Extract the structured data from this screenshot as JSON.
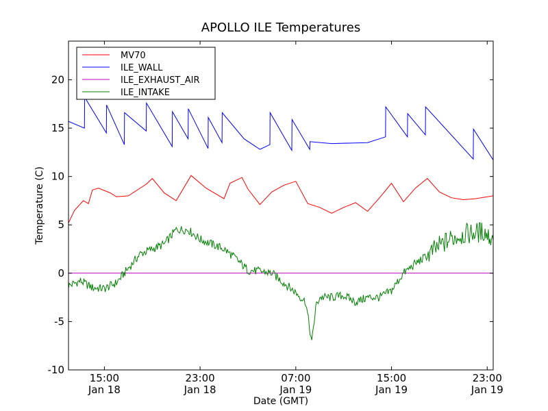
{
  "chart_data": {
    "type": "line",
    "title": "APOLLO ILE Temperatures",
    "xlabel": "Date (GMT)",
    "ylabel": "Temperature (C)",
    "xlim": [
      "2025-01-18 12:00",
      "2025-01-19 23:30"
    ],
    "ylim": [
      -10,
      24
    ],
    "grid": false,
    "legend_position": "top-left",
    "x_ticks": [
      {
        "time": "Jan 18 15:00",
        "time_label": "15:00",
        "date_label": "Jan 18"
      },
      {
        "time": "Jan 18 23:00",
        "time_label": "23:00",
        "date_label": "Jan 18"
      },
      {
        "time": "Jan 19 07:00",
        "time_label": "07:00",
        "date_label": "Jan 19"
      },
      {
        "time": "Jan 19 15:00",
        "time_label": "15:00",
        "date_label": "Jan 19"
      },
      {
        "time": "Jan 19 23:00",
        "time_label": "23:00",
        "date_label": "Jan 19"
      }
    ],
    "y_ticks": [
      "-10",
      "-5",
      "0",
      "5",
      "10",
      "15",
      "20"
    ],
    "series": [
      {
        "name": "MV70",
        "color": "#ff0000",
        "x": [
          "Jan 18 12:00",
          "Jan 18 12:30",
          "Jan 18 13:15",
          "Jan 18 13:40",
          "Jan 18 14:00",
          "Jan 18 14:30",
          "Jan 18 15:30",
          "Jan 18 16:00",
          "Jan 18 17:00",
          "Jan 18 18:30",
          "Jan 18 19:00",
          "Jan 18 20:00",
          "Jan 18 21:00",
          "Jan 18 22:15",
          "Jan 18 23:30",
          "Jan 19 01:00",
          "Jan 19 01:30",
          "Jan 19 02:30",
          "Jan 19 03:00",
          "Jan 19 04:00",
          "Jan 19 05:00",
          "Jan 19 06:00",
          "Jan 19 07:00",
          "Jan 19 08:00",
          "Jan 19 09:00",
          "Jan 19 10:00",
          "Jan 19 11:00",
          "Jan 19 12:00",
          "Jan 19 13:00",
          "Jan 19 14:00",
          "Jan 19 15:00",
          "Jan 19 16:00",
          "Jan 19 17:00",
          "Jan 19 18:00",
          "Jan 19 19:00",
          "Jan 19 20:00",
          "Jan 19 21:00",
          "Jan 19 22:00",
          "Jan 19 23:30"
        ],
        "y": [
          5.2,
          6.5,
          7.5,
          7.2,
          8.6,
          8.8,
          8.3,
          7.9,
          8.0,
          9.2,
          9.8,
          8.3,
          7.5,
          10.1,
          8.8,
          7.7,
          9.3,
          9.9,
          8.7,
          7.1,
          8.4,
          9.1,
          9.5,
          7.2,
          6.8,
          6.2,
          6.8,
          7.3,
          6.4,
          7.8,
          9.3,
          7.4,
          8.8,
          9.8,
          8.4,
          7.8,
          7.6,
          7.7,
          8.0
        ]
      },
      {
        "name": "ILE_WALL",
        "color": "#0000ff",
        "x": [
          "Jan 18 12:00",
          "Jan 18 13:20",
          "Jan 18 13:21",
          "Jan 18 15:10",
          "Jan 18 15:11",
          "Jan 18 16:40",
          "Jan 18 16:41",
          "Jan 18 18:30",
          "Jan 18 18:31",
          "Jan 18 20:40",
          "Jan 18 20:41",
          "Jan 18 22:00",
          "Jan 18 22:01",
          "Jan 18 23:40",
          "Jan 18 23:41",
          "Jan 19 00:50",
          "Jan 19 00:51",
          "Jan 19 02:40",
          "Jan 19 04:00",
          "Jan 19 04:50",
          "Jan 19 04:51",
          "Jan 19 06:40",
          "Jan 19 06:41",
          "Jan 19 08:10",
          "Jan 19 08:11",
          "Jan 19 10:00",
          "Jan 19 13:00",
          "Jan 19 14:30",
          "Jan 19 14:31",
          "Jan 19 16:20",
          "Jan 19 16:21",
          "Jan 19 17:50",
          "Jan 19 17:51",
          "Jan 19 21:50",
          "Jan 19 21:51",
          "Jan 19 23:30"
        ],
        "y": [
          15.7,
          15.0,
          18.2,
          14.5,
          17.4,
          13.3,
          16.6,
          14.7,
          17.6,
          13.1,
          16.7,
          13.9,
          17.0,
          12.9,
          16.1,
          13.5,
          16.6,
          13.9,
          12.8,
          13.3,
          16.6,
          12.7,
          15.9,
          12.8,
          13.6,
          13.4,
          13.5,
          14.1,
          17.2,
          14.1,
          16.5,
          14.3,
          17.2,
          11.8,
          14.9,
          11.7
        ]
      },
      {
        "name": "ILE_EXHAUST_AIR",
        "color": "#bf00bf",
        "x": [
          "Jan 18 12:00",
          "Jan 19 23:30"
        ],
        "y": [
          0,
          0
        ]
      },
      {
        "name": "ILE_INTAKE",
        "color": "#008000",
        "x": [
          "Jan 18 12:00",
          "Jan 18 13:00",
          "Jan 18 14:00",
          "Jan 18 15:00",
          "Jan 18 16:00",
          "Jan 18 17:00",
          "Jan 18 18:00",
          "Jan 18 19:00",
          "Jan 18 20:00",
          "Jan 18 21:00",
          "Jan 18 22:00",
          "Jan 18 23:00",
          "Jan 19 00:00",
          "Jan 19 01:00",
          "Jan 19 02:00",
          "Jan 19 03:00",
          "Jan 19 04:00",
          "Jan 19 05:00",
          "Jan 19 06:00",
          "Jan 19 07:00",
          "Jan 19 07:50",
          "Jan 19 08:20",
          "Jan 19 08:40",
          "Jan 19 09:00",
          "Jan 19 10:00",
          "Jan 19 11:00",
          "Jan 19 12:00",
          "Jan 19 13:00",
          "Jan 19 14:00",
          "Jan 19 15:00",
          "Jan 19 16:00",
          "Jan 19 17:00",
          "Jan 19 18:00",
          "Jan 19 19:00",
          "Jan 19 20:00",
          "Jan 19 21:00",
          "Jan 19 22:00",
          "Jan 19 22:45",
          "Jan 19 23:30"
        ],
        "y": [
          -1.3,
          -0.8,
          -1.5,
          -1.6,
          -1.0,
          0.5,
          2.0,
          2.5,
          3.0,
          4.5,
          4.5,
          3.5,
          3.0,
          2.5,
          1.5,
          0.3,
          0.2,
          0.0,
          -1.0,
          -2.0,
          -3.0,
          -7.2,
          -3.5,
          -2.5,
          -2.5,
          -2.3,
          -3.0,
          -2.5,
          -2.5,
          -1.8,
          0.0,
          1.0,
          1.8,
          2.8,
          3.6,
          4.0,
          4.2,
          4.3,
          3.4
        ]
      }
    ]
  }
}
